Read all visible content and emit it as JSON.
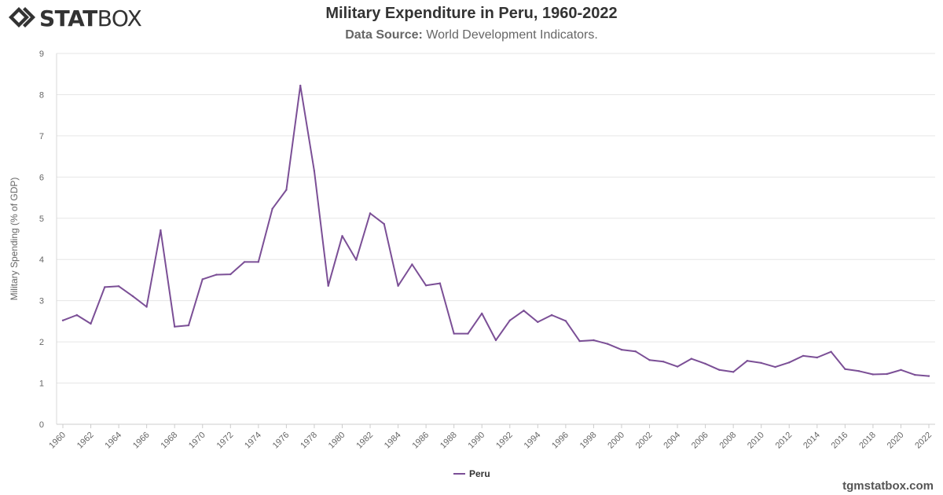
{
  "logo": {
    "text_bold": "STAT",
    "text_light": "BOX"
  },
  "header": {
    "title": "Military Expenditure in Peru, 1960-2022",
    "subtitle_label": "Data Source:",
    "subtitle_value": "World Development Indicators."
  },
  "footer": {
    "site": "tgmstatbox.com"
  },
  "colors": {
    "series": "#7b4f96",
    "grid": "#e6e6e6",
    "text": "#666666"
  },
  "chart_data": {
    "type": "line",
    "title": "Military Expenditure in Peru, 1960-2022",
    "subtitle": "Data Source: World Development Indicators.",
    "xlabel": "",
    "ylabel": "Military Spending (% of GDP)",
    "ylim": [
      0,
      9
    ],
    "yticks": [
      0,
      1,
      2,
      3,
      4,
      5,
      6,
      7,
      8,
      9
    ],
    "xticks": [
      1960,
      1962,
      1964,
      1966,
      1968,
      1970,
      1972,
      1974,
      1976,
      1978,
      1980,
      1982,
      1984,
      1986,
      1988,
      1990,
      1992,
      1994,
      1996,
      1998,
      2000,
      2002,
      2004,
      2006,
      2008,
      2010,
      2012,
      2014,
      2016,
      2018,
      2020,
      2022
    ],
    "grid": true,
    "legend": "bottom-center",
    "x": [
      1960,
      1961,
      1962,
      1963,
      1964,
      1965,
      1966,
      1967,
      1968,
      1969,
      1970,
      1971,
      1972,
      1973,
      1974,
      1975,
      1976,
      1977,
      1978,
      1979,
      1980,
      1981,
      1982,
      1983,
      1984,
      1985,
      1986,
      1987,
      1988,
      1989,
      1990,
      1991,
      1992,
      1993,
      1994,
      1995,
      1996,
      1997,
      1998,
      1999,
      2000,
      2001,
      2002,
      2003,
      2004,
      2005,
      2006,
      2007,
      2008,
      2009,
      2010,
      2011,
      2012,
      2013,
      2014,
      2015,
      2016,
      2017,
      2018,
      2019,
      2020,
      2021,
      2022
    ],
    "series": [
      {
        "name": "Peru",
        "values": [
          2.52,
          2.65,
          2.44,
          3.33,
          3.35,
          3.11,
          2.85,
          4.71,
          2.37,
          2.4,
          3.52,
          3.63,
          3.64,
          3.94,
          3.94,
          5.23,
          5.69,
          8.22,
          6.15,
          3.36,
          4.57,
          3.99,
          5.12,
          4.86,
          3.36,
          3.88,
          3.37,
          3.42,
          2.2,
          2.2,
          2.69,
          2.04,
          2.52,
          2.76,
          2.48,
          2.65,
          2.51,
          2.02,
          2.04,
          1.95,
          1.81,
          1.77,
          1.56,
          1.52,
          1.4,
          1.59,
          1.47,
          1.32,
          1.27,
          1.54,
          1.49,
          1.39,
          1.5,
          1.66,
          1.62,
          1.76,
          1.34,
          1.29,
          1.21,
          1.22,
          1.32,
          1.2,
          1.17
        ]
      }
    ]
  }
}
